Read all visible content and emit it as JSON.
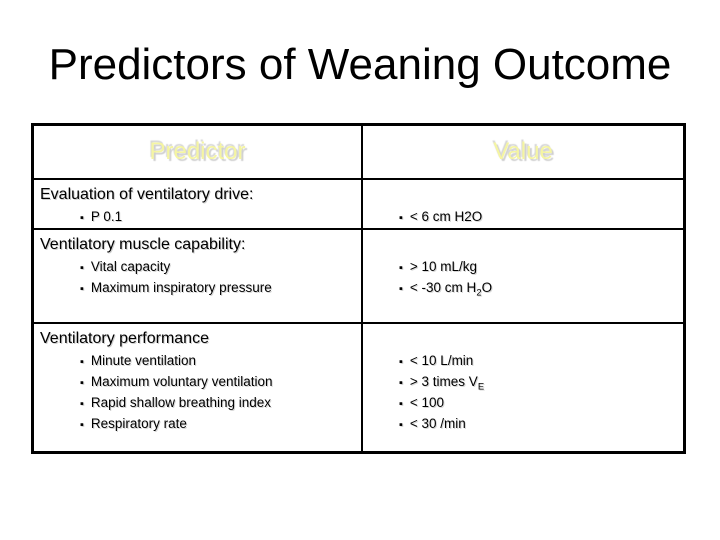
{
  "slide": {
    "title": "Predictors of Weaning Outcome"
  },
  "glyphs": {
    "bullet": "▪"
  },
  "colors": {
    "background": "#ffffff",
    "title_text": "#000000",
    "table_border": "#000000",
    "header_text": "#f5f5a2",
    "body_text": "#000000"
  },
  "table": {
    "headers": [
      {
        "label": "Predictor"
      },
      {
        "label": "Value"
      }
    ],
    "rows": [
      {
        "heading": "Evaluation of ventilatory drive:",
        "predictors": [
          "P 0.1"
        ],
        "values": [
          "< 6 cm H2O"
        ]
      },
      {
        "heading": "Ventilatory muscle capability:",
        "predictors": [
          "Vital capacity",
          "Maximum inspiratory pressure"
        ],
        "values": [
          "> 10 mL/kg",
          "< -30 cm H~2~O"
        ]
      },
      {
        "heading": "Ventilatory performance",
        "predictors": [
          "Minute ventilation",
          "Maximum voluntary ventilation",
          "Rapid shallow breathing index",
          "Respiratory rate"
        ],
        "values": [
          "< 10 L/min",
          "> 3 times V~E~",
          "< 100",
          "< 30 /min"
        ]
      }
    ]
  }
}
